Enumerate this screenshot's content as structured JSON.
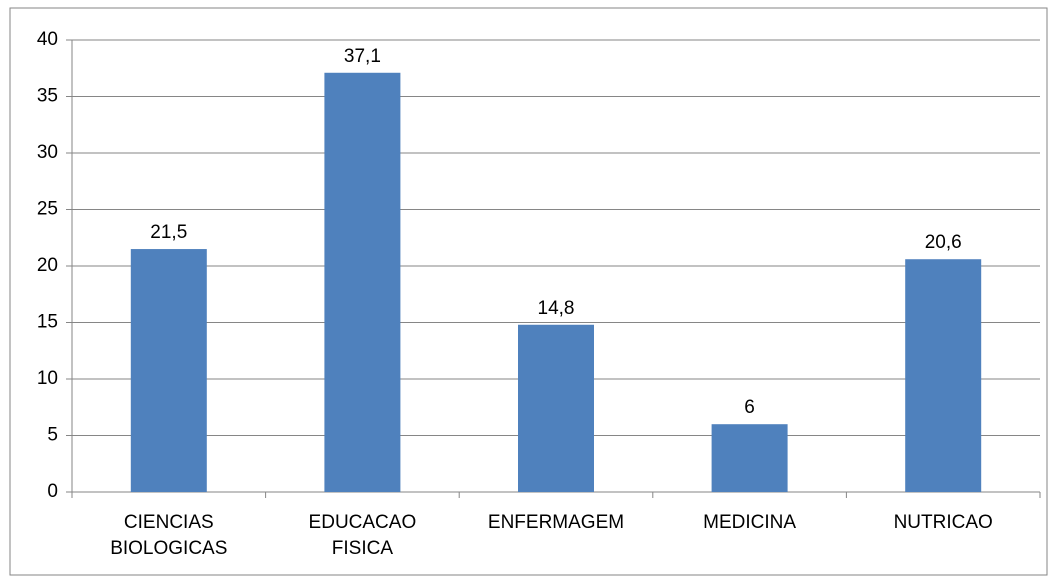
{
  "chart_data": {
    "type": "bar",
    "categories": [
      "CIENCIAS BIOLOGICAS",
      "EDUCACAO FISICA",
      "ENFERMAGEM",
      "MEDICINA",
      "NUTRICAO"
    ],
    "values": [
      21.5,
      37.1,
      14.8,
      6,
      20.6
    ],
    "value_labels": [
      "21,5",
      "37,1",
      "14,8",
      "6",
      "20,6"
    ],
    "color": "#4f81bd",
    "ylim": [
      0,
      40
    ],
    "yticks": [
      0,
      5,
      10,
      15,
      20,
      25,
      30,
      35,
      40
    ],
    "grid": true
  }
}
